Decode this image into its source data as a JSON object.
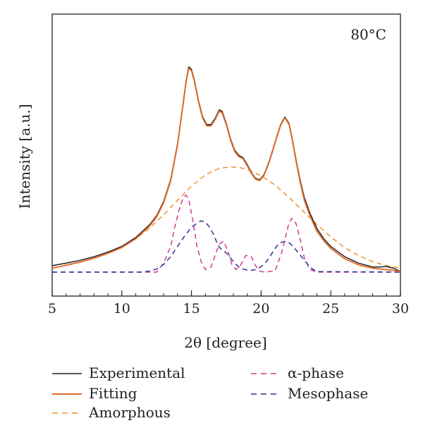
{
  "chart_data": {
    "type": "line",
    "title": "",
    "annotation": "80°C",
    "xlabel": "2θ [degree]",
    "ylabel": "Intensity [a.u.]",
    "xlim": [
      5,
      30
    ],
    "ylim": [
      0,
      100
    ],
    "x_ticks": [
      "5",
      "10",
      "15",
      "20",
      "25",
      "30"
    ],
    "grid": false,
    "legend_position": "bottom",
    "series": [
      {
        "name": "Experimental",
        "color": "#231f20",
        "style": "solid",
        "x": [
          5,
          6,
          7,
          8,
          9,
          10,
          11,
          12,
          12.5,
          13,
          13.5,
          14,
          14.3,
          14.6,
          14.8,
          15.0,
          15.2,
          15.5,
          15.8,
          16.1,
          16.4,
          16.7,
          17.0,
          17.2,
          17.5,
          17.8,
          18.1,
          18.4,
          18.7,
          19.0,
          19.3,
          19.6,
          19.9,
          20.2,
          20.5,
          20.8,
          21.1,
          21.4,
          21.7,
          22.0,
          22.2,
          22.5,
          22.8,
          23.1,
          23.5,
          24.0,
          24.5,
          25,
          26,
          27,
          28,
          28.5,
          29,
          29.5,
          30
        ],
        "y": [
          2.5,
          3.5,
          4.6,
          6.0,
          7.8,
          10.0,
          13.5,
          18.5,
          22.0,
          27.5,
          36.0,
          50.0,
          62.0,
          74.0,
          80.0,
          79.0,
          75.0,
          67.0,
          60.5,
          57.5,
          57.5,
          60.0,
          63.3,
          62.6,
          58.0,
          52.0,
          47.5,
          45.5,
          44.6,
          42.0,
          38.8,
          36.5,
          36.0,
          38.0,
          42.0,
          47.0,
          52.5,
          57.5,
          60.5,
          58.0,
          53.0,
          44.0,
          36.0,
          29.0,
          23.0,
          17.0,
          13.0,
          10.0,
          6.0,
          3.5,
          2.0,
          2.0,
          2.2,
          1.5,
          0.3
        ]
      },
      {
        "name": "Fitting",
        "color": "#e26a2c",
        "style": "solid",
        "x": [
          5,
          6,
          7,
          8,
          9,
          10,
          11,
          12,
          12.5,
          13,
          13.5,
          14,
          14.3,
          14.6,
          14.8,
          15.0,
          15.2,
          15.5,
          15.8,
          16.1,
          16.4,
          16.7,
          17.0,
          17.2,
          17.5,
          17.8,
          18.1,
          18.4,
          18.7,
          19.0,
          19.3,
          19.6,
          19.9,
          20.2,
          20.5,
          20.8,
          21.1,
          21.4,
          21.7,
          22.0,
          22.2,
          22.5,
          22.8,
          23.1,
          23.5,
          24.0,
          24.5,
          25,
          26,
          27,
          28,
          28.5,
          29,
          29.5,
          30
        ],
        "y": [
          1.5,
          2.7,
          3.9,
          5.4,
          7.3,
          9.6,
          13.0,
          18.0,
          21.5,
          27.0,
          35.5,
          49.5,
          61.5,
          73.5,
          79.5,
          78.5,
          74.5,
          66.5,
          60.0,
          57.0,
          57.0,
          59.5,
          62.8,
          62.0,
          57.5,
          51.5,
          47.0,
          45.0,
          44.2,
          41.5,
          38.5,
          36.2,
          35.7,
          37.7,
          41.7,
          46.7,
          52.2,
          57.2,
          60.2,
          57.6,
          52.6,
          43.5,
          35.2,
          28.0,
          22.0,
          16.0,
          12.2,
          9.2,
          5.2,
          2.8,
          1.5,
          1.2,
          1.0,
          0.7,
          0.3
        ]
      },
      {
        "name": "Amorphous",
        "color": "#f0902a",
        "style": "dashed",
        "x": [
          5,
          6,
          7,
          8,
          9,
          10,
          11,
          12,
          13,
          14,
          15,
          16,
          17,
          17.8,
          18.5,
          19,
          20,
          21,
          22,
          23,
          24,
          25,
          26,
          27,
          28,
          29,
          30
        ],
        "y": [
          1.5,
          2.6,
          3.9,
          5.4,
          7.3,
          9.6,
          13.0,
          17.2,
          22.3,
          28.0,
          33.5,
          37.9,
          40.5,
          41.0,
          40.7,
          40.0,
          37.6,
          33.9,
          29.1,
          23.8,
          18.6,
          13.7,
          9.5,
          6.4,
          4.1,
          2.5,
          1.5
        ]
      },
      {
        "name": "α-phase",
        "color": "#d33a8e",
        "style": "dashed",
        "x": [
          5,
          12.5,
          13.0,
          13.5,
          13.8,
          14.1,
          14.4,
          14.6,
          14.8,
          15.1,
          15.4,
          15.7,
          16.0,
          16.4,
          16.7,
          17.0,
          17.3,
          17.6,
          17.9,
          18.2,
          18.5,
          18.9,
          19.3,
          19.6,
          19.9,
          20.3,
          21.0,
          21.5,
          21.8,
          22.0,
          22.2,
          22.5,
          22.8,
          23.1,
          23.5,
          24.0,
          30
        ],
        "y": [
          0,
          0,
          3.5,
          10.0,
          17.5,
          24.0,
          29.0,
          30.0,
          28.5,
          20.0,
          10.0,
          4.0,
          1.0,
          2.0,
          6.5,
          11.0,
          12.0,
          8.5,
          3.0,
          1.0,
          2.5,
          6.5,
          6.0,
          2.5,
          0.3,
          0,
          0.5,
          8.0,
          15.0,
          19.0,
          21.0,
          19.0,
          13.0,
          5.5,
          1.0,
          0,
          0
        ]
      },
      {
        "name": "Mesophase",
        "color": "#2e3192",
        "style": "dashed",
        "x": [
          5,
          11.5,
          12.0,
          12.5,
          13.0,
          13.5,
          14.0,
          14.5,
          15.0,
          15.4,
          15.7,
          16.0,
          16.3,
          16.6,
          16.9,
          17.2,
          17.5,
          17.8,
          18.1,
          18.4,
          18.7,
          19.0,
          19.3,
          19.6,
          19.9,
          20.2,
          20.5,
          20.8,
          21.1,
          21.4,
          21.7,
          22.0,
          22.3,
          22.6,
          22.9,
          23.2,
          23.5,
          23.8,
          24.2,
          30
        ],
        "y": [
          0,
          0,
          0.4,
          1.2,
          3.0,
          6.0,
          10.0,
          14.0,
          17.5,
          19.0,
          20.0,
          19.5,
          17.5,
          14.5,
          10.5,
          8.5,
          7.5,
          5.5,
          3.5,
          2.0,
          1.2,
          0.8,
          0.7,
          1.0,
          1.8,
          3.0,
          5.0,
          7.5,
          10.0,
          11.5,
          12.0,
          11.5,
          10.0,
          8.0,
          6.0,
          4.0,
          2.0,
          0.8,
          0.2,
          0
        ]
      }
    ]
  }
}
